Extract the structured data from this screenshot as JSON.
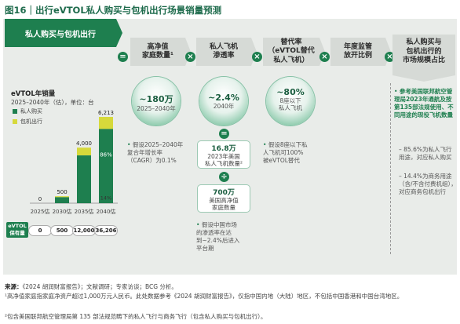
{
  "title": "图16｜出行eVTOL私人购买与包机出行场景销量预测",
  "headers": {
    "main": "私人购买与包机出行",
    "h1": "高净值\n家庭数量¹",
    "h2": "私人飞机\n渗透率",
    "h3": "替代率\n（eVTOL替代\n私人飞机）",
    "h4": "年度监管\n放开比例",
    "right": "私人购买与\n包机出行的\n市场规模占比"
  },
  "operators": {
    "op1": "=",
    "op2": "×",
    "op3": "×",
    "op4": "×",
    "op5": "×",
    "op6": "=",
    "op7": "÷"
  },
  "bubbles": {
    "b1": {
      "value": "~180万",
      "sub": "2025–2040年"
    },
    "b2": {
      "value": "~2.4%",
      "sub": "2040年"
    },
    "b3": {
      "value": "~80%",
      "sub": "8座以下\n私人飞机"
    }
  },
  "boxes": {
    "box1": {
      "value": "16.8万",
      "sub": "2023年美国\n私人飞机数量²"
    },
    "box2": {
      "value": "700万",
      "sub": "美国高净值\n家庭数量"
    }
  },
  "notes": {
    "n1": "假设2025–2040年\n复合年增长率\n（CAGR）为0.1%",
    "n2": "假设中国市场\n的渗透率在达\n到~2.4%后进入\n平台期",
    "n3": "假设8座以下私\n人飞机可100%\n被eVTOL替代"
  },
  "right_notes": {
    "main": "参考美国联邦航空管理局2023年通航及按第135部法规使用、不同用途的现役飞机数量",
    "s1": "85.6%为私人飞行用途，对应私人购买",
    "s2": "14.4%为商务用途（含/不含付费机组），对应商务包机出行"
  },
  "chart_data": {
    "type": "bar",
    "title": "eVTOL年销量",
    "subtitle": "2025–2040年（估），单位：台",
    "categories": [
      "2025估",
      "2030估",
      "2035估",
      "2040估"
    ],
    "totals": [
      0,
      500,
      4000,
      6213
    ],
    "series": [
      {
        "name": "私人购买",
        "color": "#1e7f4f",
        "share": [
          0.86,
          0.86,
          0.86,
          0.86
        ]
      },
      {
        "name": "包机出行",
        "color": "#d6d93b",
        "share": [
          0.14,
          0.14,
          0.14,
          0.14
        ]
      }
    ],
    "bar_labels": {
      "private": "86%",
      "charter": "14%"
    },
    "ylim": [
      0,
      6213
    ],
    "fleet_label": "eVTOL\n保有量",
    "fleet": [
      "0",
      "500",
      "12,000",
      "36,206"
    ]
  },
  "footnotes": {
    "source_label": "来源：",
    "source": "《2024 胡润财富报告》；文献调研；专家访谈；BCG 分析。",
    "f1": "¹高净值家庭指家庭净资产超过1,000万元人民币。此处数据参考《2024 胡润财富报告》，仅指中国内地（大陆）地区，不包括中国香港和中国台湾地区。",
    "f2": "²包含美国联邦航空管理局第 135 部法规范畴下的私人飞行与商务飞行（包含私人购买与包机出行）。"
  },
  "colors": {
    "brand": "#1e7f4f",
    "accent": "#d6d93b",
    "panel": "#e9ece9"
  }
}
